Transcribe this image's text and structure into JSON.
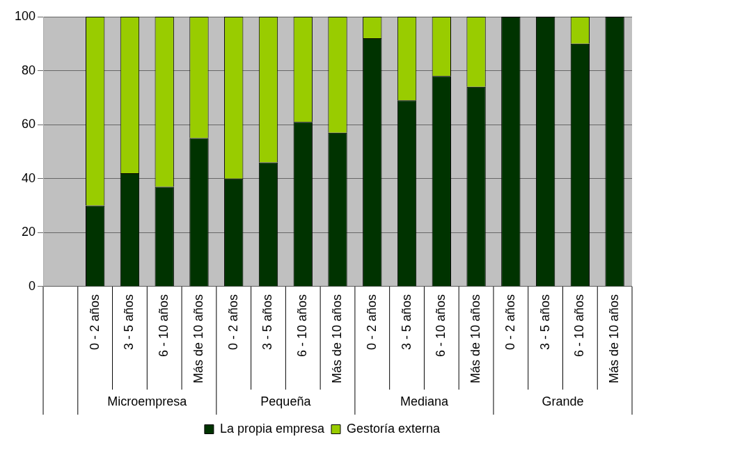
{
  "chart_data": {
    "type": "bar",
    "stacked": true,
    "categories": [
      null,
      "0 - 2 años",
      "3 - 5 años",
      "6 - 10 años",
      "Más de 10 años",
      "0 - 2 años",
      "3 - 5 años",
      "6 - 10 años",
      "Más de 10 años",
      "0 - 2 años",
      "3 - 5 años",
      "6 - 10 años",
      "Más de 10 años",
      "0 - 2 años",
      "3 - 5 años",
      "6 - 10 años",
      "Más de 10 años"
    ],
    "series": [
      {
        "name": "La propia empresa",
        "color": "#003300",
        "values": [
          0,
          30,
          42,
          37,
          55,
          40,
          46,
          61,
          57,
          92,
          69,
          78,
          74,
          100,
          100,
          90,
          100
        ]
      },
      {
        "name": "Gestoría externa",
        "color": "#99cc00",
        "values": [
          0,
          70,
          58,
          63,
          45,
          60,
          54,
          39,
          43,
          8,
          31,
          22,
          26,
          0,
          0,
          10,
          0
        ]
      }
    ],
    "ylim": [
      0,
      100
    ],
    "yticks": [
      0,
      20,
      40,
      60,
      80,
      100
    ],
    "grid": "y",
    "legend": "bottom",
    "annotations": [
      "Microempresa",
      "Pequeña",
      "Mediana",
      "Grande"
    ]
  }
}
